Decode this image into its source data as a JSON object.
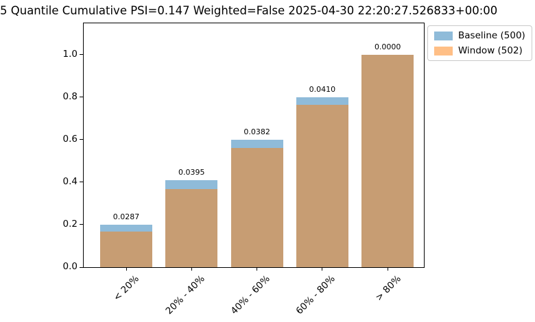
{
  "figure": {
    "title": "5 Quantile Cumulative PSI=0.147 Weighted=False 2025-04-30 22:20:27.526833+00:00"
  },
  "legend": {
    "items": [
      {
        "label": "Baseline (500)",
        "color": "#1f77b4"
      },
      {
        "label": "Window (502)",
        "color": "#ff7f0e"
      }
    ]
  },
  "chart_data": {
    "type": "bar",
    "bar_mode": "overlay",
    "title": "5 Quantile Cumulative PSI=0.147 Weighted=False 2025-04-30 22:20:27.526833+00:00",
    "psi_total": 0.147,
    "weighted": "False",
    "timestamp": "2025-04-30 22:20:27.526833+00:00",
    "categories": [
      "< 20%",
      "20% - 40%",
      "40% - 60%",
      "60% - 80%",
      "> 80%"
    ],
    "series": [
      {
        "name": "Baseline (500)",
        "color": "#1f77b4",
        "alpha": 0.5,
        "values": [
          0.2,
          0.408,
          0.6,
          0.8,
          1.0
        ]
      },
      {
        "name": "Window (502)",
        "color": "#ff7f0e",
        "alpha": 0.5,
        "values": [
          0.167,
          0.368,
          0.561,
          0.762,
          1.0
        ]
      }
    ],
    "bar_labels": [
      "0.0287",
      "0.0395",
      "0.0382",
      "0.0410",
      "0.0000"
    ],
    "xlabel": "",
    "ylabel": "",
    "yticks": [
      0.0,
      0.2,
      0.4,
      0.6,
      0.8,
      1.0
    ],
    "ylim": [
      0,
      1.147
    ],
    "grid": false,
    "legend_position": "upper right, outside axes",
    "xtick_rotation": 45
  }
}
